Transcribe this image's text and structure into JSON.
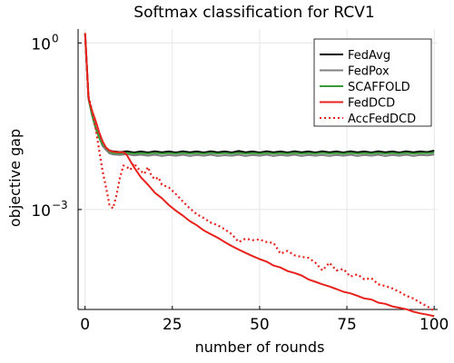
{
  "chart_data": {
    "type": "line",
    "title": "Softmax classification for RCV1",
    "xlabel": "number of rounds",
    "ylabel": "objective gap",
    "xlim": [
      -2,
      101
    ],
    "ylim_log10": [
      -4.8,
      0.25
    ],
    "y_scale": "log",
    "grid": true,
    "legend_position": "top-right",
    "x_ticks": [
      0,
      25,
      50,
      75,
      100
    ],
    "x_tick_labels": [
      "0",
      "25",
      "50",
      "75",
      "100"
    ],
    "y_ticks_log10": [
      0,
      -3
    ],
    "y_tick_labels": [
      "10",
      "10"
    ],
    "y_tick_exponents": [
      "0",
      "−3"
    ],
    "series": [
      {
        "name": "FedAvg",
        "color": "#000000",
        "dash": "solid",
        "x": [
          0,
          1,
          2,
          3,
          4,
          5,
          6,
          7,
          8,
          10,
          12,
          14,
          16,
          18,
          20,
          22,
          24,
          26,
          28,
          30,
          32,
          34,
          36,
          38,
          40,
          42,
          44,
          46,
          48,
          50,
          52,
          54,
          56,
          58,
          60,
          62,
          64,
          66,
          68,
          70,
          72,
          74,
          76,
          78,
          80,
          82,
          84,
          86,
          88,
          90,
          92,
          94,
          96,
          98,
          100
        ],
        "y": [
          1.5,
          0.1,
          0.05,
          0.03,
          0.02,
          0.015,
          0.013,
          0.0115,
          0.0112,
          0.0108,
          0.0112,
          0.0106,
          0.0111,
          0.0106,
          0.0112,
          0.0107,
          0.0111,
          0.0106,
          0.0112,
          0.0107,
          0.0111,
          0.0106,
          0.0112,
          0.0107,
          0.0111,
          0.0106,
          0.0113,
          0.0107,
          0.0111,
          0.0106,
          0.0112,
          0.0107,
          0.0111,
          0.0106,
          0.0112,
          0.0107,
          0.0111,
          0.0106,
          0.0112,
          0.0107,
          0.0111,
          0.0106,
          0.0112,
          0.0107,
          0.0111,
          0.0106,
          0.0112,
          0.0107,
          0.0111,
          0.0106,
          0.0112,
          0.0107,
          0.0111,
          0.0108,
          0.0115
        ]
      },
      {
        "name": "FedPox",
        "color": "#808080",
        "dash": "solid",
        "x": [
          0,
          1,
          2,
          3,
          4,
          5,
          6,
          7,
          8,
          10,
          12,
          14,
          16,
          18,
          20,
          22,
          24,
          26,
          28,
          30,
          32,
          34,
          36,
          38,
          40,
          42,
          44,
          46,
          48,
          50,
          52,
          54,
          56,
          58,
          60,
          62,
          64,
          66,
          68,
          70,
          72,
          74,
          76,
          78,
          80,
          82,
          84,
          86,
          88,
          90,
          92,
          94,
          96,
          98,
          100
        ],
        "y": [
          1.5,
          0.1,
          0.05,
          0.03,
          0.02,
          0.014,
          0.0118,
          0.0102,
          0.0098,
          0.0096,
          0.0099,
          0.0094,
          0.0097,
          0.0093,
          0.0097,
          0.0092,
          0.0096,
          0.0093,
          0.0097,
          0.0092,
          0.0096,
          0.0093,
          0.0097,
          0.0092,
          0.0095,
          0.0093,
          0.0097,
          0.0092,
          0.0096,
          0.0093,
          0.0097,
          0.0092,
          0.0096,
          0.0093,
          0.0097,
          0.0092,
          0.0096,
          0.0093,
          0.0096,
          0.0092,
          0.0096,
          0.0093,
          0.0097,
          0.0092,
          0.0096,
          0.0093,
          0.0097,
          0.0092,
          0.0096,
          0.0093,
          0.0097,
          0.0092,
          0.0096,
          0.0094,
          0.0098
        ]
      },
      {
        "name": "SCAFFOLD",
        "color": "#3a9a3a",
        "dash": "solid",
        "x": [
          0,
          1,
          2,
          3,
          4,
          5,
          6,
          7,
          8,
          10,
          12,
          14,
          16,
          18,
          20,
          22,
          24,
          26,
          28,
          30,
          32,
          34,
          36,
          38,
          40,
          42,
          44,
          46,
          48,
          50,
          52,
          54,
          56,
          58,
          60,
          62,
          64,
          66,
          68,
          70,
          72,
          74,
          76,
          78,
          80,
          82,
          84,
          86,
          88,
          90,
          92,
          94,
          96,
          98,
          100
        ],
        "y": [
          1.5,
          0.1,
          0.05,
          0.03,
          0.02,
          0.015,
          0.013,
          0.011,
          0.0104,
          0.0102,
          0.0105,
          0.0101,
          0.0104,
          0.0101,
          0.0105,
          0.0101,
          0.0104,
          0.0101,
          0.0105,
          0.0101,
          0.0104,
          0.0101,
          0.0105,
          0.0101,
          0.0104,
          0.0101,
          0.0105,
          0.0101,
          0.0104,
          0.0101,
          0.0105,
          0.0101,
          0.0104,
          0.0101,
          0.0105,
          0.0101,
          0.0104,
          0.0101,
          0.0105,
          0.0101,
          0.0104,
          0.0101,
          0.0105,
          0.0101,
          0.0104,
          0.0101,
          0.0105,
          0.0101,
          0.0104,
          0.0101,
          0.0105,
          0.0101,
          0.0104,
          0.0103,
          0.0106
        ]
      },
      {
        "name": "FedDCD",
        "color": "#e8211c",
        "dash": "solid",
        "x": [
          0,
          1,
          2,
          3,
          4,
          5,
          6,
          7,
          8,
          9,
          10,
          11,
          12,
          14,
          16,
          18,
          20,
          22,
          24,
          26,
          28,
          30,
          32,
          34,
          36,
          38,
          40,
          42,
          44,
          46,
          48,
          50,
          52,
          54,
          56,
          58,
          60,
          62,
          64,
          66,
          68,
          70,
          72,
          74,
          76,
          78,
          80,
          82,
          84,
          86,
          88,
          90,
          92,
          94,
          96,
          98,
          100
        ],
        "y": [
          1.5,
          0.1,
          0.06,
          0.04,
          0.025,
          0.017,
          0.013,
          0.0115,
          0.011,
          0.0108,
          0.0107,
          0.0108,
          0.0095,
          0.0058,
          0.0038,
          0.0028,
          0.002,
          0.0016,
          0.0012,
          0.00095,
          0.00078,
          0.00062,
          0.00052,
          0.00042,
          0.00036,
          0.00031,
          0.00026,
          0.00022,
          0.00019,
          0.000165,
          0.000145,
          0.000128,
          0.000115,
          9.8e-05,
          9e-05,
          7.8e-05,
          7.2e-05,
          6.5e-05,
          5.5e-05,
          5e-05,
          4.5e-05,
          4.1e-05,
          3.7e-05,
          3.3e-05,
          3.1e-05,
          2.8e-05,
          2.5e-05,
          2.4e-05,
          2.1e-05,
          2e-05,
          1.8e-05,
          1.7e-05,
          1.6e-05,
          1.45e-05,
          1.35e-05,
          1.28e-05,
          1.2e-05
        ]
      },
      {
        "name": "AccFedDCD",
        "color": "#e8211c",
        "dash": "dotted",
        "x": [
          0,
          1,
          2,
          3,
          4,
          5,
          6,
          7,
          8,
          9,
          10,
          11,
          12,
          13,
          14,
          15,
          16,
          17,
          18,
          19,
          20,
          21,
          22,
          24,
          26,
          28,
          30,
          32,
          34,
          36,
          38,
          40,
          42,
          44,
          46,
          48,
          50,
          52,
          54,
          56,
          58,
          60,
          62,
          64,
          66,
          68,
          70,
          72,
          74,
          76,
          78,
          80,
          82,
          84,
          86,
          88,
          90,
          92,
          94,
          96,
          98,
          100
        ],
        "y": [
          1.5,
          0.11,
          0.06,
          0.03,
          0.012,
          0.005,
          0.0025,
          0.0012,
          0.00105,
          0.0018,
          0.0038,
          0.0062,
          0.0058,
          0.0052,
          0.0068,
          0.0056,
          0.0049,
          0.0044,
          0.0058,
          0.0041,
          0.0035,
          0.0038,
          0.0028,
          0.0025,
          0.0019,
          0.0014,
          0.00105,
          0.00082,
          0.0007,
          0.00058,
          0.00052,
          0.00044,
          0.00036,
          0.00026,
          0.0003,
          0.00028,
          0.00029,
          0.00026,
          0.00025,
          0.00016,
          0.00018,
          0.00015,
          0.00014,
          0.000135,
          0.00011,
          8e-05,
          0.00011,
          8e-05,
          8.5e-05,
          6.2e-05,
          6.8e-05,
          5.5e-05,
          5.8e-05,
          4.5e-05,
          4.2e-05,
          3.8e-05,
          3.3e-05,
          2.8e-05,
          2.5e-05,
          2.1e-05,
          1.8e-05,
          1.5e-05
        ]
      }
    ]
  }
}
